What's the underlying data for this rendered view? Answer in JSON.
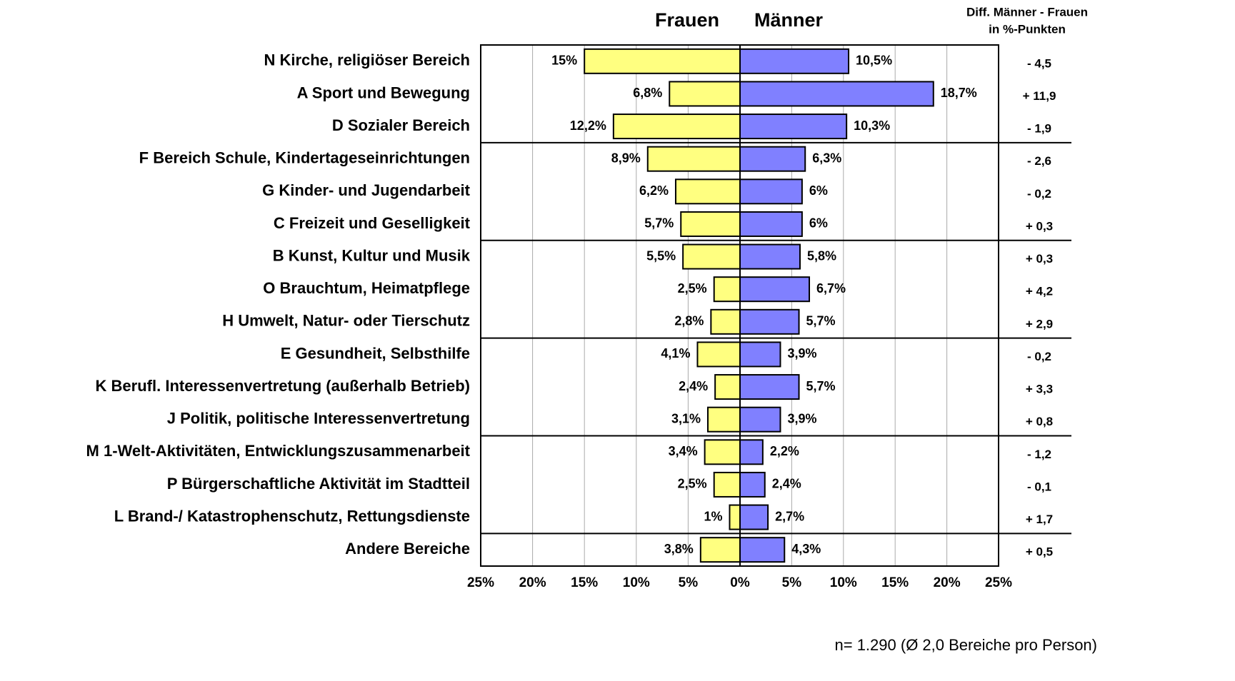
{
  "chart_data": {
    "type": "butterfly",
    "diff_header": [
      "Diff. Männer - Frauen",
      "in %-Punkten"
    ],
    "categories": [
      "N Kirche, religiöser Bereich",
      "A Sport und Bewegung",
      "D Sozialer Bereich",
      "F Bereich Schule, Kindertageseinrichtungen",
      "G Kinder- und Jugendarbeit",
      "C Freizeit und Geselligkeit",
      "B Kunst, Kultur und Musik",
      "O Brauchtum, Heimatpflege",
      "H Umwelt, Natur- oder Tierschutz",
      "E Gesundheit, Selbsthilfe",
      "K Berufl. Interessenvertretung (außerhalb Betrieb)",
      "J Politik, politische Interessenvertretung",
      "M 1-Welt-Aktivitäten, Entwicklungszusammenarbeit",
      "P Bürgerschaftliche Aktivität im Stadtteil",
      "L Brand-/ Katastrophenschutz, Rettungsdienste",
      "Andere Bereiche"
    ],
    "series": [
      {
        "name": "Frauen",
        "color": "#ffff80",
        "side": "left",
        "values": [
          15,
          6.8,
          12.2,
          8.9,
          6.2,
          5.7,
          5.5,
          2.5,
          2.8,
          4.1,
          2.4,
          3.1,
          3.4,
          2.5,
          1,
          3.8
        ],
        "value_labels": [
          "15%",
          "6,8%",
          "12,2%",
          "8,9%",
          "6,2%",
          "5,7%",
          "5,5%",
          "2,5%",
          "2,8%",
          "4,1%",
          "2,4%",
          "3,1%",
          "3,4%",
          "2,5%",
          "1%",
          "3,8%"
        ]
      },
      {
        "name": "Männer",
        "color": "#8080ff",
        "side": "right",
        "values": [
          10.5,
          18.7,
          10.3,
          6.3,
          6,
          6,
          5.8,
          6.7,
          5.7,
          3.9,
          5.7,
          3.9,
          2.2,
          2.4,
          2.7,
          4.3
        ],
        "value_labels": [
          "10,5%",
          "18,7%",
          "10,3%",
          "6,3%",
          "6%",
          "6%",
          "5,8%",
          "6,7%",
          "5,7%",
          "3,9%",
          "5,7%",
          "3,9%",
          "2,2%",
          "2,4%",
          "2,7%",
          "4,3%"
        ]
      }
    ],
    "differences": [
      -4.5,
      11.9,
      -1.9,
      -2.6,
      -0.2,
      0.3,
      0.3,
      4.2,
      2.9,
      -0.2,
      3.3,
      0.8,
      -1.2,
      -0.1,
      1.7,
      0.5
    ],
    "difference_labels": [
      "- 4,5",
      "+ 11,9",
      "- 1,9",
      "- 2,6",
      "- 0,2",
      "+ 0,3",
      "+ 0,3",
      "+ 4,2",
      "+ 2,9",
      "- 0,2",
      "+ 3,3",
      "+ 0,8",
      "- 1,2",
      "- 0,1",
      "+ 1,7",
      "+ 0,5"
    ],
    "xlim": [
      0,
      25
    ],
    "xticks_left": [
      {
        "value": 25,
        "label": "25%"
      },
      {
        "value": 20,
        "label": "20%"
      },
      {
        "value": 15,
        "label": "15%"
      },
      {
        "value": 10,
        "label": "10%"
      },
      {
        "value": 5,
        "label": "5%"
      },
      {
        "value": 0,
        "label": "0%"
      }
    ],
    "xticks_right": [
      {
        "value": 5,
        "label": "5%"
      },
      {
        "value": 10,
        "label": "10%"
      },
      {
        "value": 15,
        "label": "15%"
      },
      {
        "value": 20,
        "label": "20%"
      },
      {
        "value": 25,
        "label": "25%"
      }
    ],
    "grid": true,
    "note": "n= 1.290 (Ø  2,0 Bereiche pro Person)"
  }
}
